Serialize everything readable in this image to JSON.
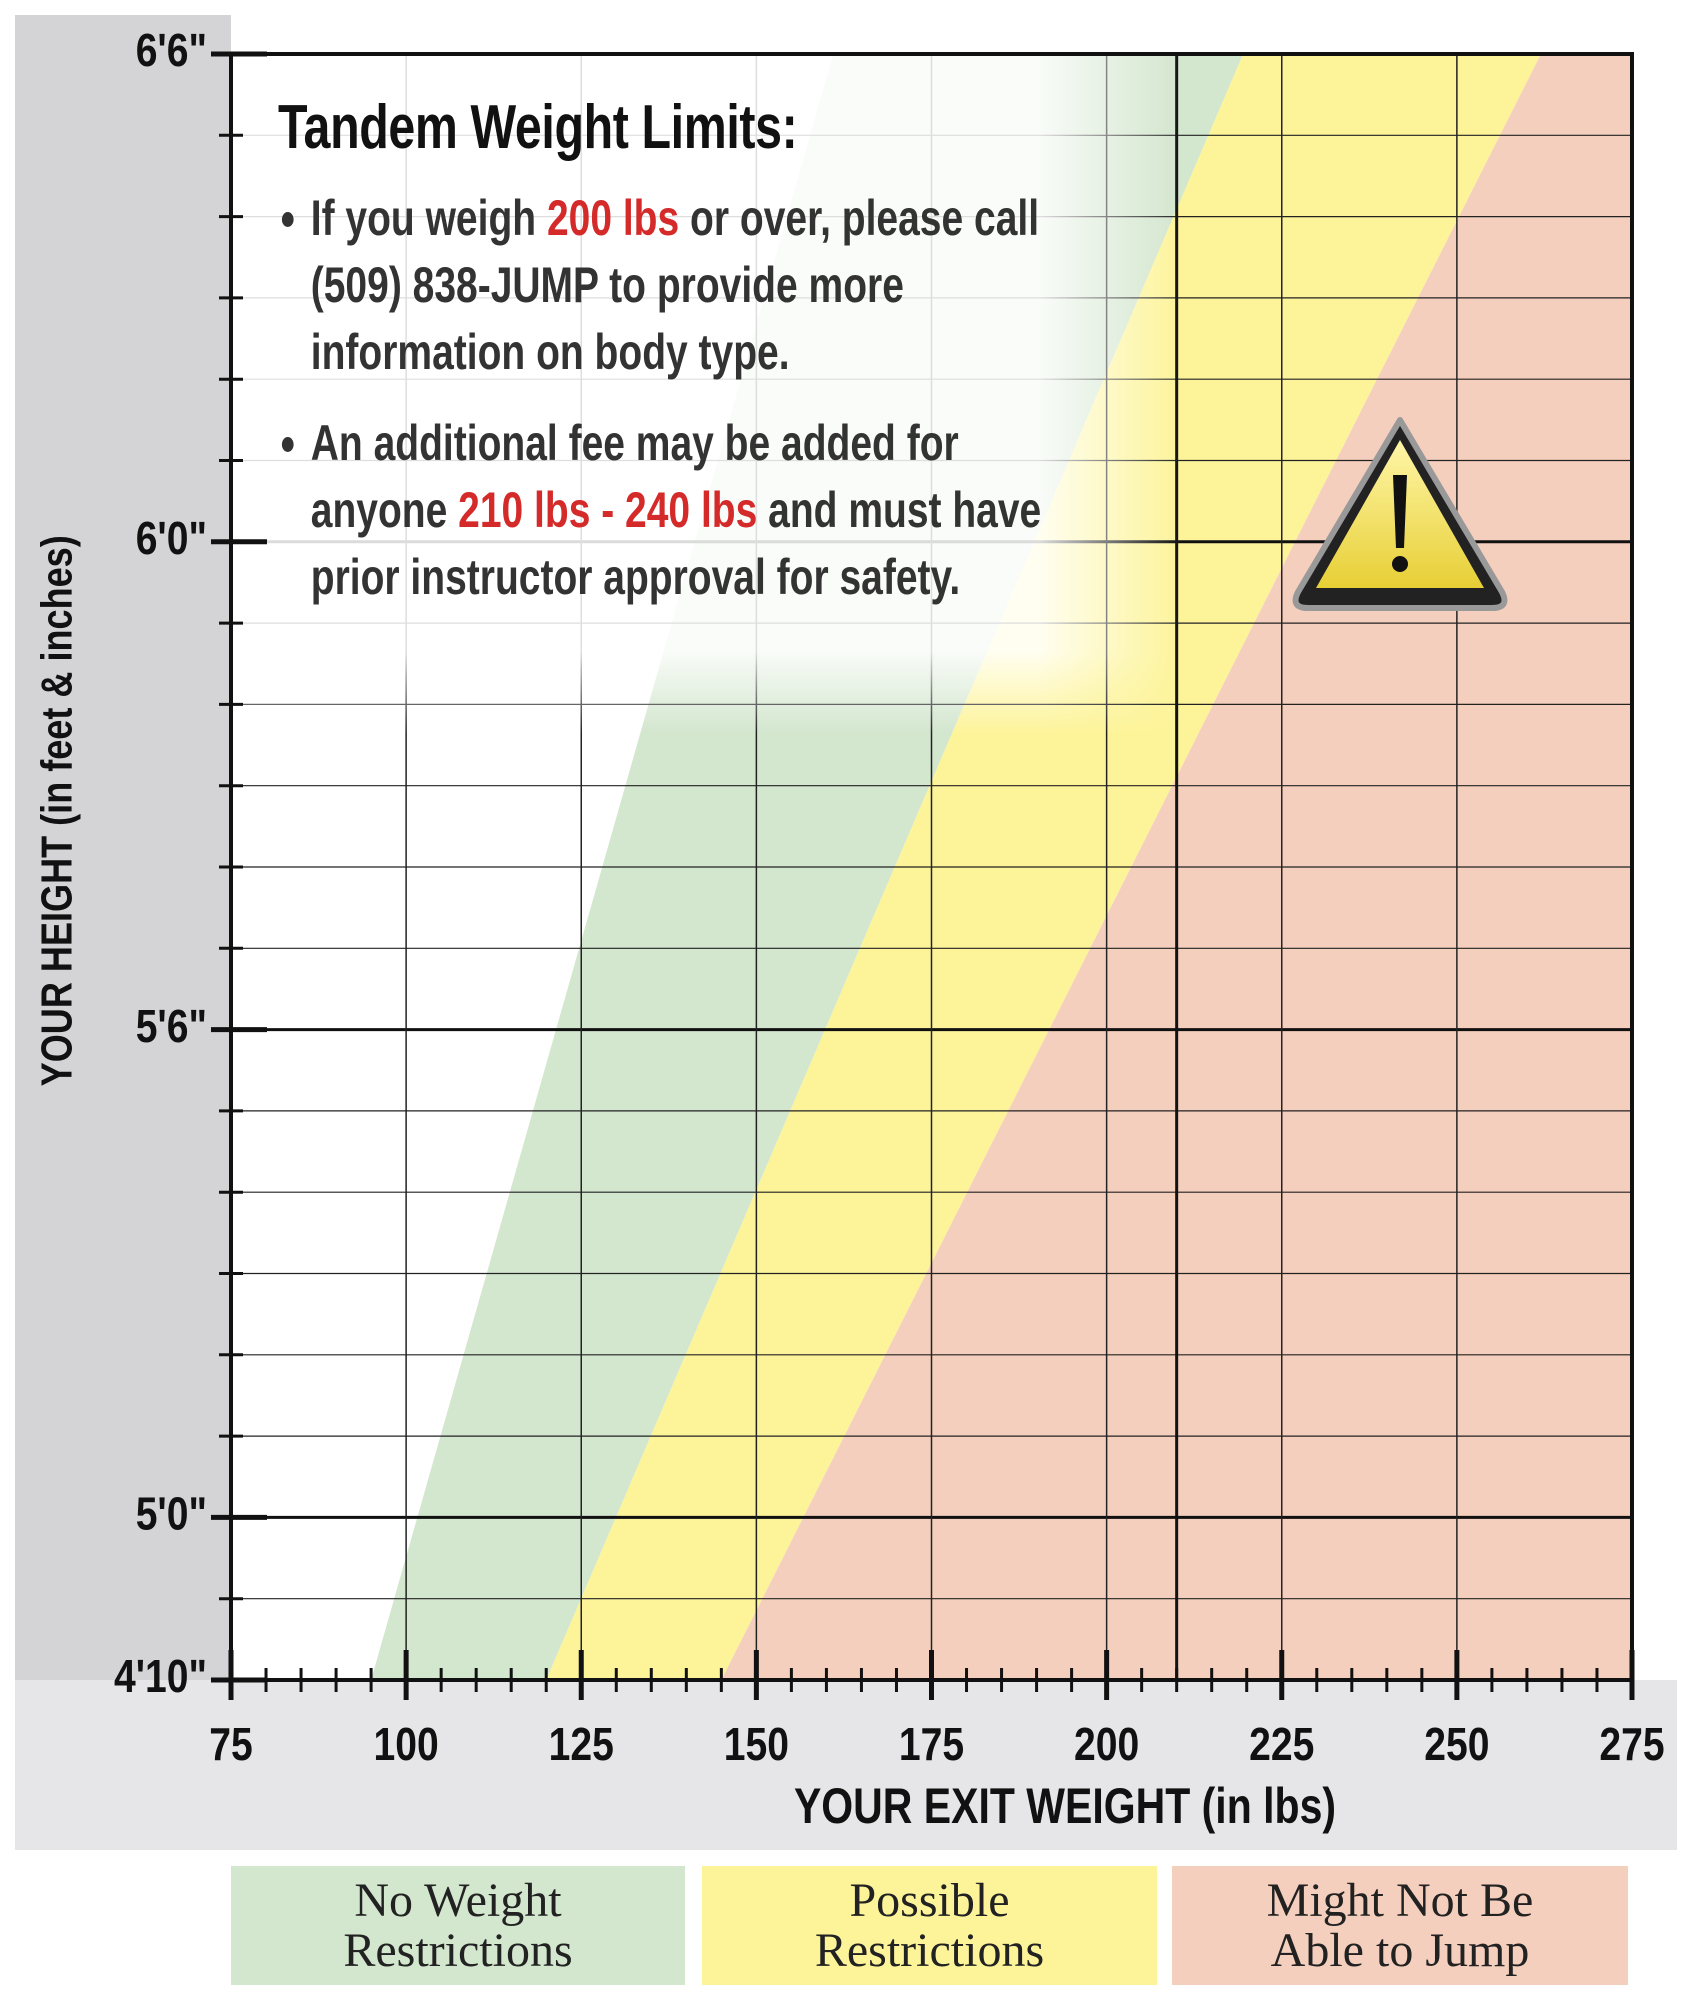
{
  "chart_data": {
    "type": "zone",
    "y_axis_label": "YOUR HEIGHT (in feet & inches)",
    "x_axis_label": "YOUR EXIT WEIGHT (in lbs)",
    "xlim": [
      75,
      275
    ],
    "ylim": [
      58,
      78
    ],
    "xticks": [
      75,
      100,
      125,
      150,
      175,
      200,
      225,
      250,
      275
    ],
    "x_minor_ticks": [
      80,
      85,
      90,
      95,
      105,
      110,
      115,
      120,
      130,
      135,
      140,
      145,
      155,
      160,
      165,
      170,
      180,
      185,
      190,
      195,
      205,
      210,
      215,
      220,
      230,
      235,
      240,
      245,
      255,
      260,
      265,
      270
    ],
    "yticks": [
      {
        "value": 58,
        "label": "4'10\""
      },
      {
        "value": 60,
        "label": "5'0\""
      },
      {
        "value": 66,
        "label": "5'6\""
      },
      {
        "value": 72,
        "label": "6'0\""
      },
      {
        "value": 78,
        "label": "6'6\""
      }
    ],
    "y_minor_ticks": [
      59,
      61,
      62,
      63,
      64,
      65,
      67,
      68,
      69,
      70,
      71,
      73,
      74,
      75,
      76,
      77
    ],
    "reference_x": 210,
    "grid": true,
    "zones": [
      {
        "name": "No Weight Restrictions",
        "color": "#d3e6ce",
        "x_at_ylim": [
          95,
          161
        ]
      },
      {
        "name": "Possible Restrictions",
        "color": "#fdf49a",
        "x_at_ylim": [
          120,
          219.5
        ]
      },
      {
        "name": "Might Not Be Able to Jump",
        "color": "#f5cfbd",
        "x_at_ylim": [
          145,
          262
        ]
      }
    ],
    "info_box": {
      "title": "Tandem Weight Limits:",
      "bullets": [
        [
          {
            "text": "If you weigh "
          },
          {
            "text": "200 lbs",
            "highlight": true
          },
          {
            "text": " or over, please call (509) 838-JUMP to provide more information on body type."
          }
        ],
        [
          {
            "text": "An additional fee may be added for anyone "
          },
          {
            "text": "210 lbs - 240 lbs",
            "highlight": true
          },
          {
            "text": " and must have prior instructor approval for safety."
          }
        ]
      ]
    }
  }
}
